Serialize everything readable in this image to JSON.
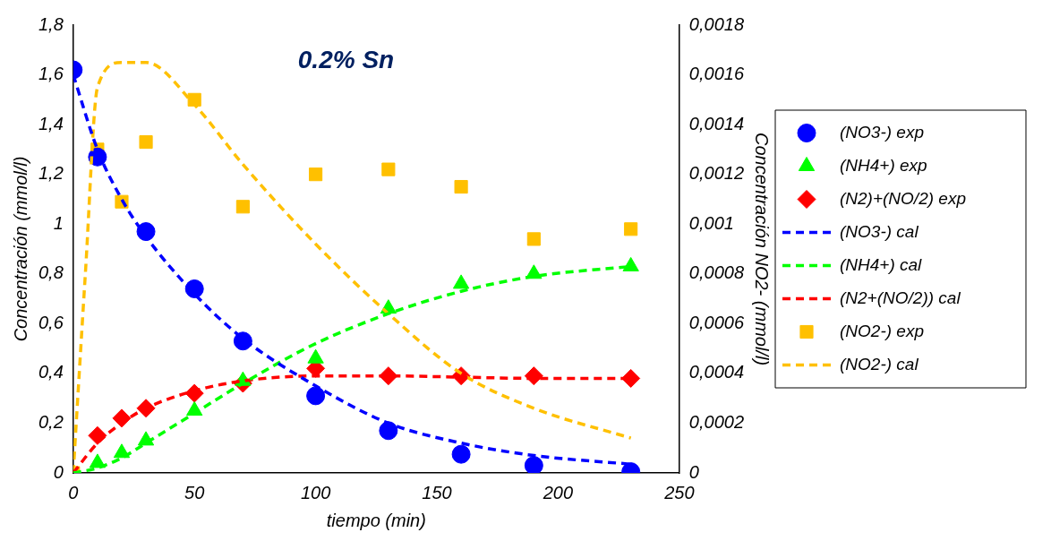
{
  "chart_data": {
    "type": "scatter",
    "xlabel": "tiempo (min)",
    "ylabel": "Concentración (mmol/l)",
    "y2label": "Concentración NO2- (mmol/l)",
    "annotations": [
      "0.2% Sn"
    ],
    "xlim": [
      0,
      250
    ],
    "xticks": [
      0,
      50,
      100,
      150,
      200,
      250
    ],
    "ylim": [
      0,
      1.8
    ],
    "yticks": [
      0,
      {
        "value": 0.2,
        "label": "0,2"
      },
      {
        "value": 0.4,
        "label": "0,4"
      },
      {
        "value": 0.6,
        "label": "0,6"
      },
      {
        "value": 0.8,
        "label": "0,8"
      },
      1,
      {
        "value": 1.2,
        "label": "1,2"
      },
      {
        "value": 1.4,
        "label": "1,4"
      },
      {
        "value": 1.6,
        "label": "1,6"
      },
      {
        "value": 1.8,
        "label": "1,8"
      }
    ],
    "y2lim": [
      0,
      0.0018
    ],
    "y2ticks": [
      0,
      {
        "value": 0.0002,
        "label": "0,0002"
      },
      {
        "value": 0.0004,
        "label": "0,0004"
      },
      {
        "value": 0.0006,
        "label": "0,0006"
      },
      {
        "value": 0.0008,
        "label": "0,0008"
      },
      {
        "value": 0.001,
        "label": "0,001"
      },
      {
        "value": 0.0012,
        "label": "0,0012"
      },
      {
        "value": 0.0014,
        "label": "0,0014"
      },
      {
        "value": 0.0016,
        "label": "0,0016"
      },
      {
        "value": 0.0018,
        "label": "0,0018"
      }
    ],
    "grid": false,
    "legend": "right",
    "series": [
      {
        "name": "(NO3-) exp",
        "type": "scatter",
        "marker": "circle",
        "color": "#0000ff",
        "x": [
          0,
          10,
          30,
          50,
          70,
          100,
          130,
          160,
          190,
          230
        ],
        "values": [
          1.62,
          1.27,
          0.97,
          0.74,
          0.53,
          0.31,
          0.17,
          0.075,
          0.03,
          0.005
        ]
      },
      {
        "name": "(NH4+) exp",
        "type": "scatter",
        "marker": "triangle",
        "color": "#00ff00",
        "x": [
          10,
          20,
          30,
          50,
          70,
          100,
          130,
          160,
          190,
          230
        ],
        "values": [
          0.04,
          0.08,
          0.13,
          0.25,
          0.37,
          0.46,
          0.66,
          0.76,
          0.8,
          0.83
        ]
      },
      {
        "name": "(N2)+(NO/2) exp",
        "type": "scatter",
        "marker": "diamond",
        "color": "#ff0000",
        "x": [
          10,
          20,
          30,
          50,
          70,
          100,
          130,
          160,
          190,
          230
        ],
        "values": [
          0.15,
          0.22,
          0.26,
          0.32,
          0.36,
          0.42,
          0.39,
          0.39,
          0.39,
          0.38
        ]
      },
      {
        "name": "(NO3-) cal",
        "type": "line",
        "line_style": "dashed",
        "color": "#0000ff",
        "x": [
          0,
          10,
          20,
          30,
          50,
          70,
          100,
          130,
          160,
          190,
          230
        ],
        "values": [
          1.6,
          1.3,
          1.1,
          0.95,
          0.72,
          0.54,
          0.35,
          0.2,
          0.12,
          0.07,
          0.035
        ]
      },
      {
        "name": "(NH4+) cal",
        "type": "line",
        "line_style": "dashed",
        "color": "#00ff00",
        "x": [
          0,
          10,
          20,
          30,
          50,
          70,
          100,
          130,
          160,
          190,
          230
        ],
        "values": [
          0,
          0.02,
          0.06,
          0.12,
          0.24,
          0.36,
          0.52,
          0.64,
          0.73,
          0.79,
          0.83
        ]
      },
      {
        "name": "(N2+(NO/2)) cal",
        "type": "line",
        "line_style": "dashed",
        "color": "#ff0000",
        "x": [
          0,
          10,
          20,
          30,
          50,
          70,
          100,
          130,
          160,
          190,
          230
        ],
        "values": [
          0,
          0.12,
          0.2,
          0.26,
          0.33,
          0.37,
          0.39,
          0.39,
          0.385,
          0.38,
          0.38
        ]
      },
      {
        "name": "(NO2-) exp",
        "type": "scatter",
        "marker": "square",
        "axis": "y2",
        "color": "#ffc000",
        "x": [
          0,
          10,
          20,
          30,
          50,
          70,
          100,
          130,
          160,
          190,
          230
        ],
        "values": [
          0,
          0.0013,
          0.00109,
          0.00133,
          0.0015,
          0.00107,
          0.0012,
          0.00122,
          0.00115,
          0.00094,
          0.00098
        ]
      },
      {
        "name": "(NO2-) cal",
        "type": "line",
        "line_style": "dashed",
        "axis": "y2",
        "color": "#ffc000",
        "x": [
          0,
          5,
          10,
          20,
          30,
          50,
          70,
          100,
          130,
          160,
          190,
          230
        ],
        "values": [
          0,
          0.0008,
          0.00155,
          0.00165,
          0.00165,
          0.00148,
          0.00124,
          0.00092,
          0.00064,
          0.0004,
          0.00026,
          0.00014
        ]
      }
    ]
  }
}
